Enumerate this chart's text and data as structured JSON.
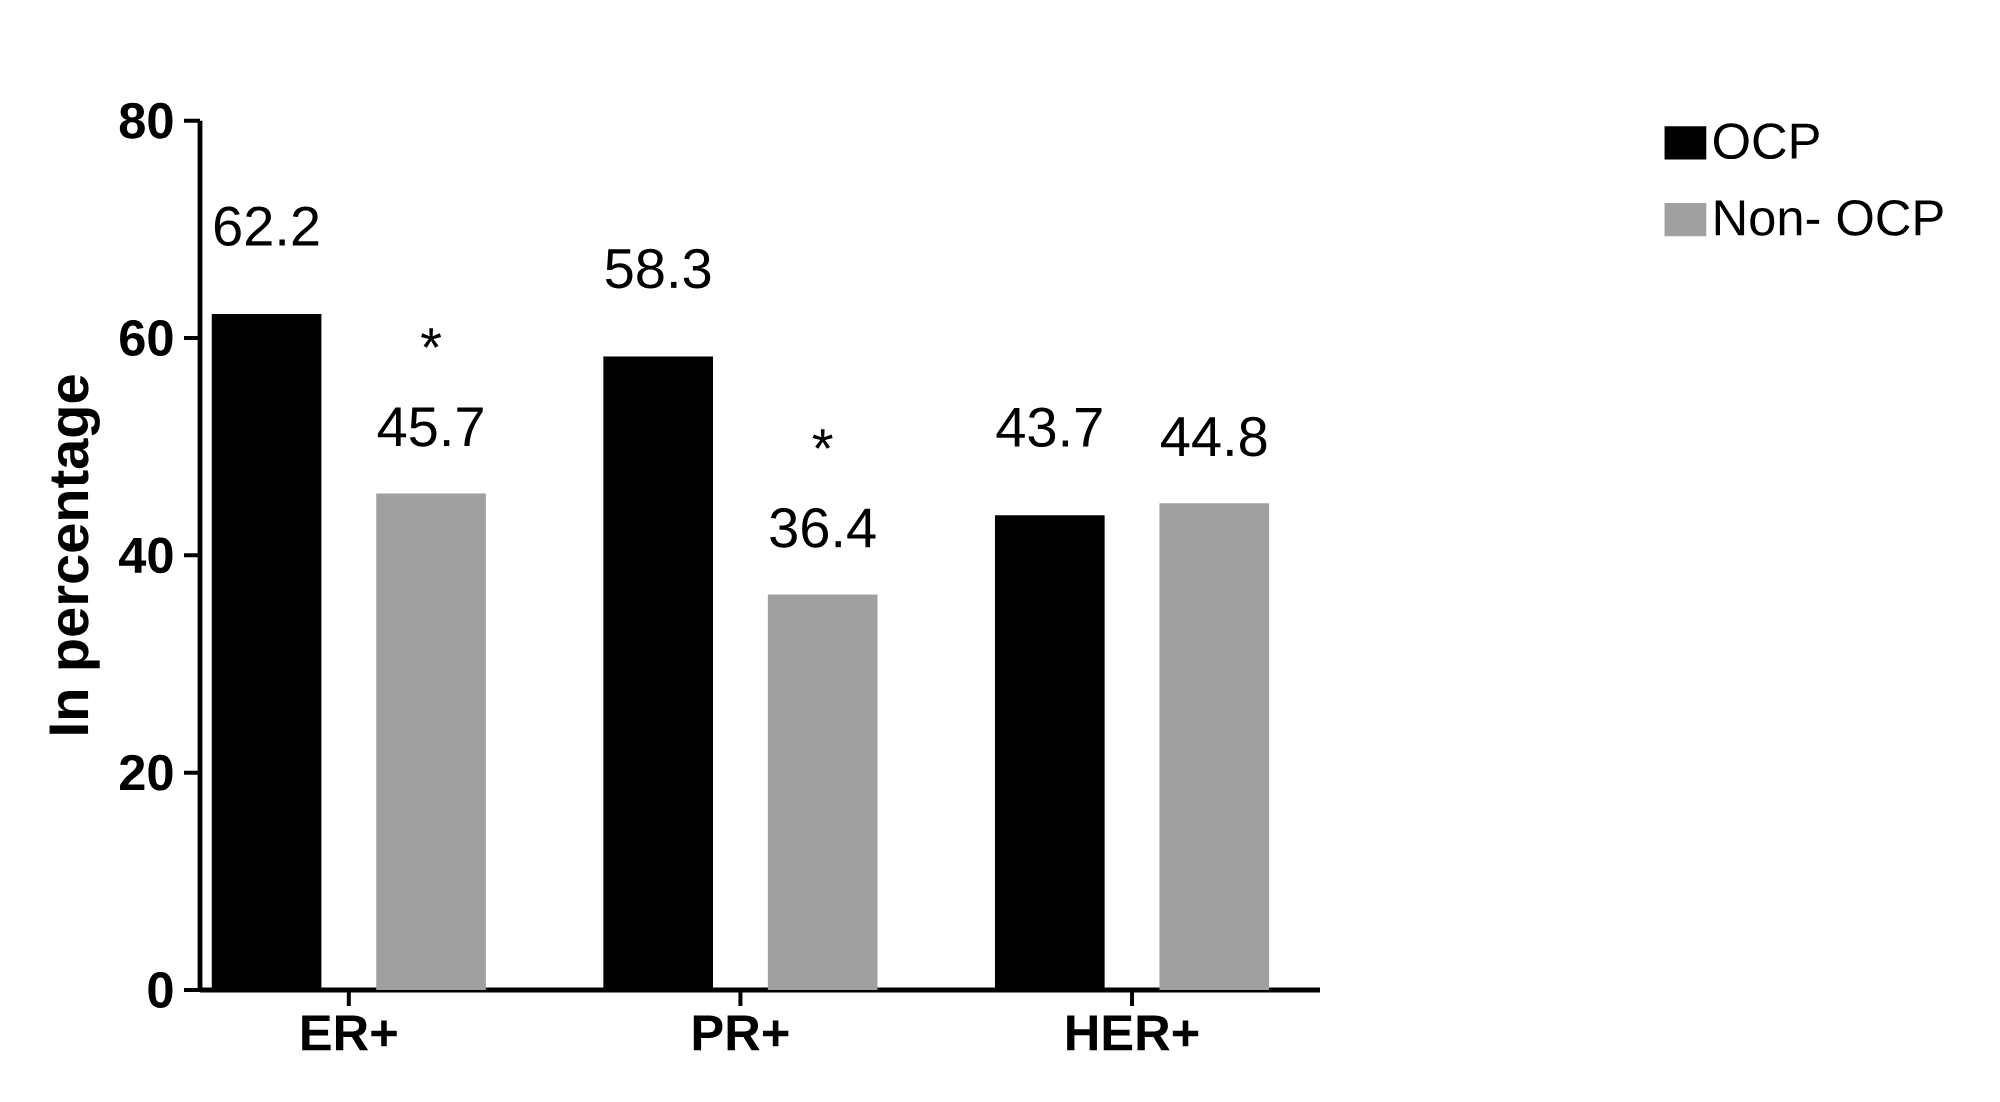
{
  "chart_data": {
    "type": "bar",
    "ylabel": "In percentage",
    "categories": [
      "ER+",
      "PR+",
      "HER+"
    ],
    "series": [
      {
        "name": "OCP",
        "color": "#000000",
        "values": [
          62.2,
          58.3,
          43.7
        ]
      },
      {
        "name": "Non- OCP",
        "color": "#a0a0a0",
        "values": [
          45.7,
          36.4,
          44.8
        ]
      }
    ],
    "ylim": [
      0,
      80
    ],
    "yticks": [
      0,
      20,
      40,
      60,
      80
    ],
    "data_labels": true,
    "grid": false,
    "legend": "top right",
    "annotations": [
      "*",
      "*"
    ]
  }
}
